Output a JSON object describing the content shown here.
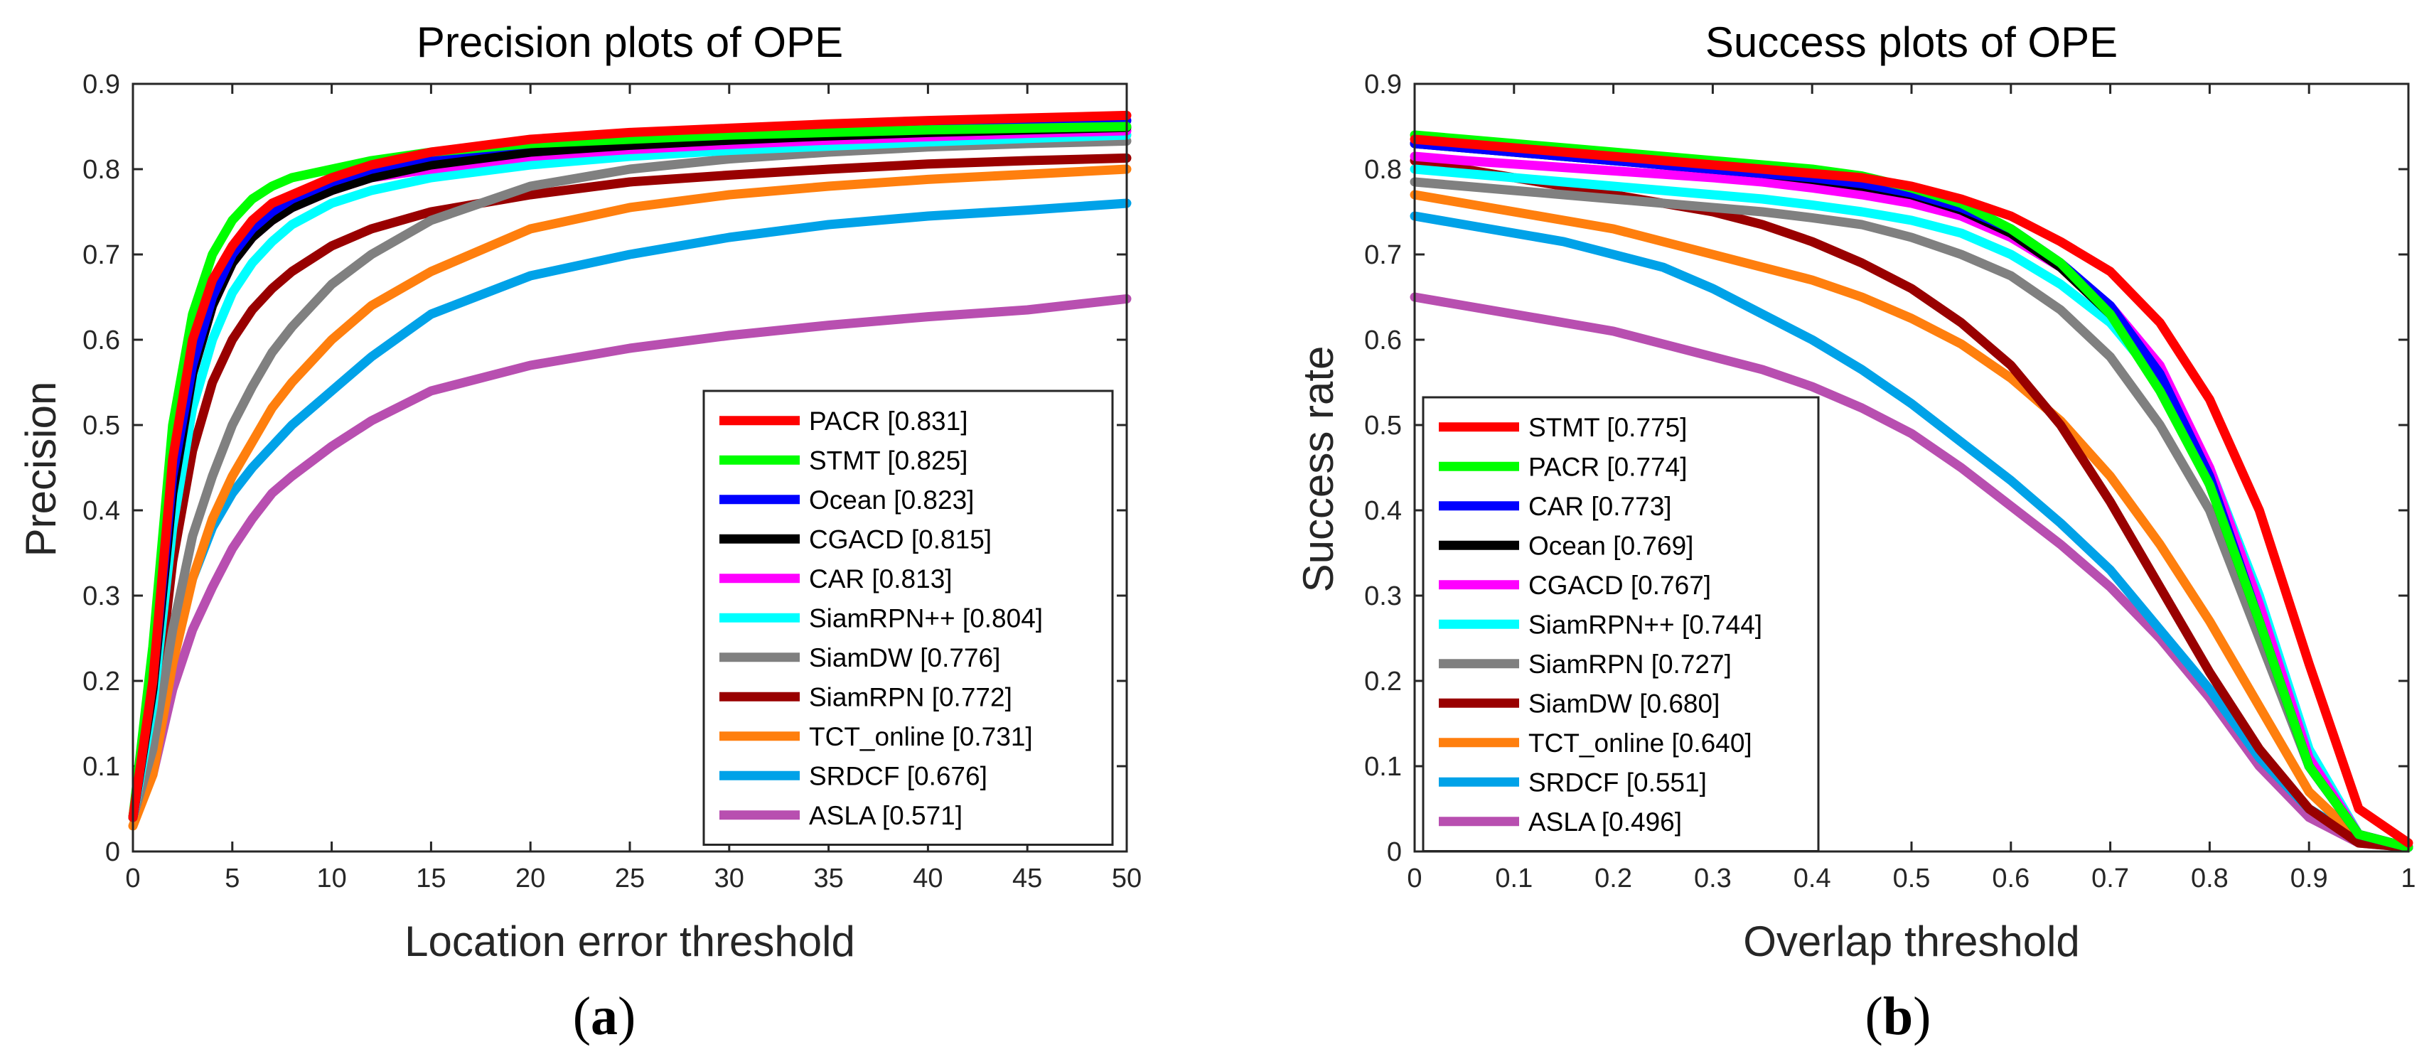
{
  "chart_data": [
    {
      "type": "line",
      "panel": "a",
      "title": "Precision plots of OPE",
      "xlabel": "Location error threshold",
      "ylabel": "Precision",
      "xlim": [
        0,
        50
      ],
      "ylim": [
        0,
        0.9
      ],
      "xticks": [
        "0",
        "5",
        "10",
        "15",
        "20",
        "25",
        "30",
        "35",
        "40",
        "45",
        "50"
      ],
      "yticks": [
        "0",
        "0.1",
        "0.2",
        "0.3",
        "0.4",
        "0.5",
        "0.6",
        "0.7",
        "0.8",
        "0.9"
      ],
      "legend_position": "bottom-right",
      "x": [
        0,
        1,
        2,
        3,
        4,
        5,
        6,
        7,
        8,
        10,
        12,
        15,
        20,
        25,
        30,
        35,
        40,
        45,
        50
      ],
      "series": [
        {
          "name": "PACR",
          "score": "0.831",
          "label": "PACR [0.831]",
          "color": "#ff0000",
          "values": [
            0.04,
            0.2,
            0.46,
            0.6,
            0.67,
            0.71,
            0.74,
            0.76,
            0.77,
            0.79,
            0.805,
            0.82,
            0.835,
            0.843,
            0.848,
            0.853,
            0.857,
            0.86,
            0.863
          ]
        },
        {
          "name": "STMT",
          "score": "0.825",
          "label": "STMT [0.825]",
          "color": "#00ff00",
          "values": [
            0.04,
            0.24,
            0.5,
            0.63,
            0.7,
            0.74,
            0.765,
            0.78,
            0.79,
            0.8,
            0.81,
            0.82,
            0.83,
            0.835,
            0.84,
            0.843,
            0.846,
            0.848,
            0.85
          ]
        },
        {
          "name": "Ocean",
          "score": "0.823",
          "label": "Ocean [0.823]",
          "color": "#0000ff",
          "values": [
            0.04,
            0.2,
            0.44,
            0.57,
            0.65,
            0.7,
            0.73,
            0.75,
            0.765,
            0.785,
            0.8,
            0.815,
            0.83,
            0.838,
            0.843,
            0.847,
            0.851,
            0.854,
            0.857
          ]
        },
        {
          "name": "CGACD",
          "score": "0.815",
          "label": "CGACD [0.815]",
          "color": "#000000",
          "values": [
            0.04,
            0.19,
            0.42,
            0.56,
            0.64,
            0.69,
            0.72,
            0.74,
            0.755,
            0.775,
            0.79,
            0.805,
            0.82,
            0.828,
            0.834,
            0.839,
            0.843,
            0.846,
            0.849
          ]
        },
        {
          "name": "CAR",
          "score": "0.813",
          "label": "CAR [0.813]",
          "color": "#ff00ff",
          "values": [
            0.04,
            0.19,
            0.42,
            0.56,
            0.64,
            0.69,
            0.72,
            0.74,
            0.755,
            0.775,
            0.79,
            0.8,
            0.815,
            0.823,
            0.829,
            0.834,
            0.838,
            0.842,
            0.845
          ]
        },
        {
          "name": "SiamRPN++",
          "score": "0.804",
          "label": "SiamRPN++ [0.804]",
          "color": "#00ffff",
          "values": [
            0.04,
            0.17,
            0.38,
            0.52,
            0.6,
            0.655,
            0.69,
            0.715,
            0.735,
            0.76,
            0.775,
            0.79,
            0.805,
            0.815,
            0.822,
            0.827,
            0.832,
            0.836,
            0.84
          ]
        },
        {
          "name": "SiamDW",
          "score": "0.776",
          "label": "SiamDW [0.776]",
          "color": "#808080",
          "values": [
            0.04,
            0.12,
            0.26,
            0.37,
            0.44,
            0.5,
            0.545,
            0.585,
            0.615,
            0.665,
            0.7,
            0.74,
            0.78,
            0.8,
            0.812,
            0.82,
            0.826,
            0.83,
            0.833
          ]
        },
        {
          "name": "SiamRPN",
          "score": "0.772",
          "label": "SiamRPN [0.772]",
          "color": "#990000",
          "values": [
            0.04,
            0.14,
            0.34,
            0.47,
            0.55,
            0.6,
            0.635,
            0.66,
            0.68,
            0.71,
            0.73,
            0.75,
            0.77,
            0.785,
            0.793,
            0.8,
            0.806,
            0.81,
            0.813
          ]
        },
        {
          "name": "TCT_online",
          "score": "0.731",
          "label": "TCT_online [0.731]",
          "color": "#ff7f0e",
          "values": [
            0.03,
            0.09,
            0.22,
            0.32,
            0.39,
            0.44,
            0.48,
            0.52,
            0.55,
            0.6,
            0.64,
            0.68,
            0.73,
            0.755,
            0.77,
            0.78,
            0.788,
            0.794,
            0.8
          ]
        },
        {
          "name": "SRDCF",
          "score": "0.676",
          "label": "SRDCF [0.676]",
          "color": "#00a2e8",
          "values": [
            0.04,
            0.1,
            0.23,
            0.32,
            0.38,
            0.42,
            0.45,
            0.475,
            0.5,
            0.54,
            0.58,
            0.63,
            0.675,
            0.7,
            0.72,
            0.735,
            0.745,
            0.752,
            0.76
          ]
        },
        {
          "name": "ASLA",
          "score": "0.571",
          "label": "ASLA [0.571]",
          "color": "#b84fb0",
          "values": [
            0.04,
            0.09,
            0.19,
            0.26,
            0.31,
            0.355,
            0.39,
            0.42,
            0.44,
            0.475,
            0.505,
            0.54,
            0.57,
            0.59,
            0.605,
            0.617,
            0.627,
            0.635,
            0.648
          ]
        }
      ]
    },
    {
      "type": "line",
      "panel": "b",
      "title": "Success plots of OPE",
      "xlabel": "Overlap threshold",
      "ylabel": "Success rate",
      "xlim": [
        0,
        1
      ],
      "ylim": [
        0,
        0.9
      ],
      "xticks": [
        "0",
        "0.1",
        "0.2",
        "0.3",
        "0.4",
        "0.5",
        "0.6",
        "0.7",
        "0.8",
        "0.9",
        "1"
      ],
      "yticks": [
        "0",
        "0.1",
        "0.2",
        "0.3",
        "0.4",
        "0.5",
        "0.6",
        "0.7",
        "0.8",
        "0.9"
      ],
      "legend_position": "bottom-left",
      "x": [
        0,
        0.05,
        0.1,
        0.15,
        0.2,
        0.25,
        0.3,
        0.35,
        0.4,
        0.45,
        0.5,
        0.55,
        0.6,
        0.65,
        0.7,
        0.75,
        0.8,
        0.85,
        0.9,
        0.95,
        1.0
      ],
      "series": [
        {
          "name": "STMT",
          "score": "0.775",
          "label": "STMT [0.775]",
          "color": "#ff0000",
          "values": [
            0.835,
            0.83,
            0.825,
            0.82,
            0.815,
            0.81,
            0.805,
            0.8,
            0.795,
            0.79,
            0.78,
            0.765,
            0.745,
            0.715,
            0.68,
            0.62,
            0.53,
            0.4,
            0.22,
            0.05,
            0.01
          ]
        },
        {
          "name": "PACR",
          "score": "0.774",
          "label": "PACR [0.774]",
          "color": "#00ff00",
          "values": [
            0.84,
            0.835,
            0.83,
            0.825,
            0.82,
            0.815,
            0.81,
            0.805,
            0.8,
            0.792,
            0.778,
            0.76,
            0.73,
            0.69,
            0.63,
            0.54,
            0.43,
            0.27,
            0.1,
            0.02,
            0.005
          ]
        },
        {
          "name": "CAR",
          "score": "0.773",
          "label": "CAR [0.773]",
          "color": "#0000ff",
          "values": [
            0.83,
            0.825,
            0.82,
            0.815,
            0.81,
            0.805,
            0.8,
            0.795,
            0.79,
            0.783,
            0.772,
            0.755,
            0.73,
            0.69,
            0.64,
            0.56,
            0.44,
            0.27,
            0.1,
            0.02,
            0.005
          ]
        },
        {
          "name": "Ocean",
          "score": "0.769",
          "label": "Ocean [0.769]",
          "color": "#000000",
          "values": [
            0.83,
            0.825,
            0.82,
            0.815,
            0.81,
            0.805,
            0.8,
            0.795,
            0.788,
            0.78,
            0.77,
            0.752,
            0.725,
            0.685,
            0.63,
            0.55,
            0.43,
            0.27,
            0.1,
            0.02,
            0.005
          ]
        },
        {
          "name": "CGACD",
          "score": "0.767",
          "label": "CGACD [0.767]",
          "color": "#ff00ff",
          "values": [
            0.815,
            0.81,
            0.806,
            0.802,
            0.798,
            0.794,
            0.79,
            0.785,
            0.778,
            0.77,
            0.76,
            0.745,
            0.72,
            0.685,
            0.64,
            0.57,
            0.45,
            0.29,
            0.11,
            0.02,
            0.005
          ]
        },
        {
          "name": "SiamRPN++",
          "score": "0.744",
          "label": "SiamRPN++ [0.744]",
          "color": "#00ffff",
          "values": [
            0.8,
            0.795,
            0.79,
            0.785,
            0.78,
            0.775,
            0.77,
            0.765,
            0.758,
            0.75,
            0.74,
            0.725,
            0.7,
            0.665,
            0.62,
            0.55,
            0.45,
            0.3,
            0.12,
            0.02,
            0.005
          ]
        },
        {
          "name": "SiamRPN",
          "score": "0.727",
          "label": "SiamRPN [0.727]",
          "color": "#808080",
          "values": [
            0.785,
            0.78,
            0.775,
            0.77,
            0.765,
            0.76,
            0.755,
            0.75,
            0.743,
            0.735,
            0.72,
            0.7,
            0.675,
            0.635,
            0.58,
            0.5,
            0.4,
            0.25,
            0.1,
            0.02,
            0.005
          ]
        },
        {
          "name": "SiamDW",
          "score": "0.680",
          "label": "SiamDW [0.680]",
          "color": "#990000",
          "values": [
            0.81,
            0.8,
            0.79,
            0.78,
            0.77,
            0.76,
            0.75,
            0.735,
            0.715,
            0.69,
            0.66,
            0.62,
            0.57,
            0.5,
            0.41,
            0.31,
            0.21,
            0.12,
            0.05,
            0.01,
            0.005
          ]
        },
        {
          "name": "TCT_online",
          "score": "0.640",
          "label": "TCT_online [0.640]",
          "color": "#ff7f0e",
          "values": [
            0.77,
            0.76,
            0.75,
            0.74,
            0.73,
            0.715,
            0.7,
            0.685,
            0.67,
            0.65,
            0.625,
            0.595,
            0.555,
            0.505,
            0.44,
            0.36,
            0.27,
            0.17,
            0.07,
            0.015,
            0.005
          ]
        },
        {
          "name": "SRDCF",
          "score": "0.551",
          "label": "SRDCF [0.551]",
          "color": "#00a2e8",
          "values": [
            0.745,
            0.735,
            0.725,
            0.715,
            0.7,
            0.685,
            0.66,
            0.63,
            0.6,
            0.565,
            0.525,
            0.48,
            0.435,
            0.385,
            0.33,
            0.26,
            0.19,
            0.11,
            0.05,
            0.015,
            0.005
          ]
        },
        {
          "name": "ASLA",
          "score": "0.496",
          "label": "ASLA [0.496]",
          "color": "#b84fb0",
          "values": [
            0.65,
            0.64,
            0.63,
            0.62,
            0.61,
            0.595,
            0.58,
            0.565,
            0.545,
            0.52,
            0.49,
            0.45,
            0.405,
            0.36,
            0.31,
            0.25,
            0.18,
            0.1,
            0.04,
            0.01,
            0.005
          ]
        }
      ]
    }
  ],
  "captions": {
    "a": "(a)",
    "b": "(b)"
  }
}
